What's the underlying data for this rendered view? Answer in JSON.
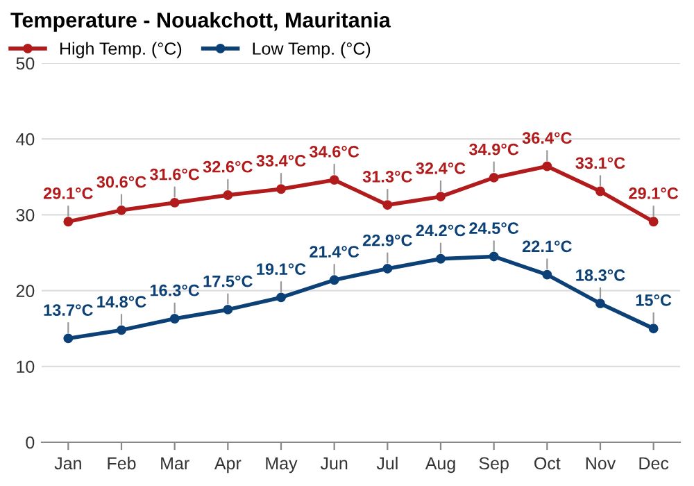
{
  "chart_data": {
    "type": "line",
    "title": "Temperature - Nouakchott, Mauritania",
    "categories": [
      "Jan",
      "Feb",
      "Mar",
      "Apr",
      "May",
      "Jun",
      "Jul",
      "Aug",
      "Sep",
      "Oct",
      "Nov",
      "Dec"
    ],
    "series": [
      {
        "name": "High Temp. (°C)",
        "color": "#b11b1b",
        "values": [
          29.1,
          30.6,
          31.6,
          32.6,
          33.4,
          34.6,
          31.3,
          32.4,
          34.9,
          36.4,
          33.1,
          29.1
        ],
        "value_labels": [
          "29.1°C",
          "30.6°C",
          "31.6°C",
          "32.6°C",
          "33.4°C",
          "34.6°C",
          "31.3°C",
          "32.4°C",
          "34.9°C",
          "36.4°C",
          "33.1°C",
          "29.1°C"
        ]
      },
      {
        "name": "Low Temp. (°C)",
        "color": "#0b4176",
        "values": [
          13.7,
          14.8,
          16.3,
          17.5,
          19.1,
          21.4,
          22.9,
          24.2,
          24.5,
          22.1,
          18.3,
          15
        ],
        "value_labels": [
          "13.7°C",
          "14.8°C",
          "16.3°C",
          "17.5°C",
          "19.1°C",
          "21.4°C",
          "22.9°C",
          "24.2°C",
          "24.5°C",
          "22.1°C",
          "18.3°C",
          "15°C"
        ]
      }
    ],
    "ylim": [
      0,
      50
    ],
    "yticks": [
      0,
      10,
      20,
      30,
      40,
      50
    ],
    "grid": "y",
    "legend": "top left",
    "marker": "circle",
    "line_style": "solid"
  }
}
